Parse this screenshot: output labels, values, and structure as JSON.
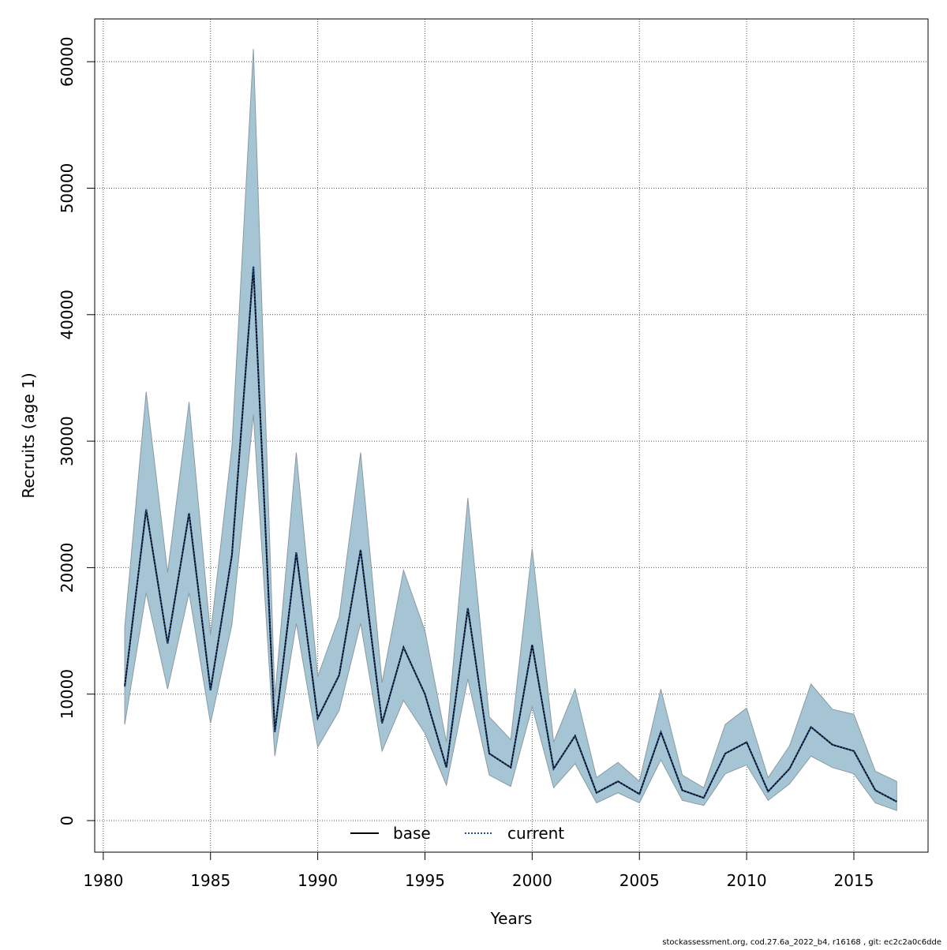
{
  "chart_data": {
    "type": "line",
    "x": [
      1981,
      1982,
      1983,
      1984,
      1985,
      1986,
      1987,
      1988,
      1989,
      1990,
      1991,
      1992,
      1993,
      1994,
      1995,
      1996,
      1997,
      1998,
      1999,
      2000,
      2001,
      2002,
      2003,
      2004,
      2005,
      2006,
      2007,
      2008,
      2009,
      2010,
      2011,
      2012,
      2013,
      2014,
      2015,
      2016,
      2017
    ],
    "series": [
      {
        "name": "base",
        "color": "#000000",
        "dash": false,
        "values": [
          10600,
          24600,
          14000,
          24300,
          10300,
          21000,
          43800,
          7000,
          21200,
          8100,
          11500,
          21400,
          7700,
          13700,
          10000,
          4200,
          16800,
          5300,
          4200,
          13900,
          4100,
          6700,
          2200,
          3100,
          2100,
          7000,
          2400,
          1800,
          5300,
          6200,
          2300,
          4100,
          7400,
          6000,
          5500,
          2400,
          1500
        ]
      },
      {
        "name": "current",
        "color": "#1f4e8c",
        "dash": true,
        "values": [
          10600,
          24600,
          14000,
          24300,
          10300,
          21000,
          43800,
          7000,
          21200,
          8100,
          11500,
          21400,
          7700,
          13700,
          10000,
          4200,
          16800,
          5300,
          4200,
          13900,
          4100,
          6700,
          2200,
          3100,
          2100,
          7000,
          2400,
          1800,
          5300,
          6200,
          2300,
          4100,
          7400,
          6000,
          5500,
          2400,
          1500
        ]
      }
    ],
    "band": {
      "color": "#a5c5d5",
      "upper": [
        15300,
        33900,
        19600,
        33100,
        14700,
        29600,
        61000,
        9800,
        29100,
        11400,
        16100,
        29100,
        10900,
        19800,
        15000,
        6200,
        25500,
        8200,
        6400,
        21500,
        6200,
        10400,
        3400,
        4600,
        3100,
        10400,
        3600,
        2600,
        7600,
        8900,
        3400,
        5900,
        10800,
        8800,
        8400,
        3900,
        3100
      ],
      "lower": [
        7600,
        18000,
        10400,
        18000,
        7700,
        15500,
        32100,
        5100,
        15600,
        5800,
        8700,
        15600,
        5500,
        9500,
        6900,
        2800,
        11200,
        3600,
        2700,
        9000,
        2600,
        4500,
        1400,
        2200,
        1400,
        4800,
        1600,
        1200,
        3700,
        4400,
        1600,
        2900,
        5100,
        4200,
        3700,
        1400,
        800
      ]
    },
    "xlabel": "Years",
    "ylabel": "Recruits (age 1)",
    "xlim": [
      1979.6,
      2018.46
    ],
    "ylim": [
      -2495,
      63380
    ],
    "xticks": [
      1980,
      1985,
      1990,
      1995,
      2000,
      2005,
      2010,
      2015
    ],
    "yticks": [
      0,
      10000,
      20000,
      30000,
      40000,
      50000,
      60000
    ],
    "grid": true,
    "legend": "bottom",
    "footnote": "stockassessment.org, cod.27.6a_2022_b4, r16168 , git: ec2c2a0c6dde"
  }
}
